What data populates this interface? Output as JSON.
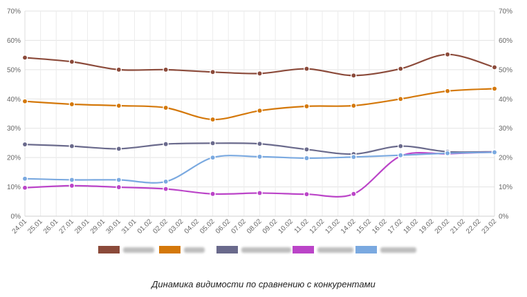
{
  "caption": "Динамика видимости по сравнению с конкурентами",
  "chart_data": {
    "type": "line",
    "title": "",
    "xlabel": "",
    "ylabel": "",
    "ylim": [
      0,
      70
    ],
    "y_ticks": [
      "0%",
      "10%",
      "20%",
      "30%",
      "40%",
      "50%",
      "60%",
      "70%"
    ],
    "y_axis": "both sides",
    "grid": true,
    "legend_position": "bottom",
    "legend_labels_obscured": true,
    "categories": [
      "24.01",
      "25.01",
      "26.01",
      "27.01",
      "28.01",
      "29.01",
      "30.01",
      "31.01",
      "01.02",
      "02.02",
      "03.02",
      "04.02",
      "05.02",
      "06.02",
      "07.02",
      "08.02",
      "09.02",
      "10.02",
      "11.02",
      "12.02",
      "13.02",
      "14.02",
      "15.02",
      "16.02",
      "17.02",
      "18.02",
      "19.02",
      "20.02",
      "21.02",
      "22.02",
      "23.02"
    ],
    "series": [
      {
        "color": "#8b4a3a",
        "points": [
          [
            0,
            54.1
          ],
          [
            3,
            52.7
          ],
          [
            6,
            50.0
          ],
          [
            9,
            50.0
          ],
          [
            12,
            49.2
          ],
          [
            15,
            48.7
          ],
          [
            18,
            50.3
          ],
          [
            21,
            48.0
          ],
          [
            24,
            50.3
          ],
          [
            27,
            55.2
          ],
          [
            30,
            50.8
          ]
        ]
      },
      {
        "color": "#d4780a",
        "points": [
          [
            0,
            39.2
          ],
          [
            3,
            38.2
          ],
          [
            6,
            37.7
          ],
          [
            9,
            37.0
          ],
          [
            12,
            33.0
          ],
          [
            15,
            36.0
          ],
          [
            18,
            37.5
          ],
          [
            21,
            37.7
          ],
          [
            24,
            40.0
          ],
          [
            27,
            42.7
          ],
          [
            30,
            43.5
          ]
        ]
      },
      {
        "color": "#6a6a8c",
        "points": [
          [
            0,
            24.5
          ],
          [
            3,
            23.9
          ],
          [
            6,
            23.0
          ],
          [
            9,
            24.6
          ],
          [
            12,
            24.9
          ],
          [
            15,
            24.7
          ],
          [
            18,
            22.8
          ],
          [
            21,
            21.2
          ],
          [
            24,
            23.9
          ],
          [
            27,
            22.0
          ],
          [
            30,
            22.0
          ]
        ]
      },
      {
        "color": "#bb44c8",
        "points": [
          [
            0,
            9.7
          ],
          [
            3,
            10.4
          ],
          [
            6,
            9.9
          ],
          [
            9,
            9.3
          ],
          [
            12,
            7.6
          ],
          [
            15,
            7.9
          ],
          [
            18,
            7.5
          ],
          [
            21,
            7.6
          ],
          [
            24,
            20.5
          ],
          [
            27,
            21.3
          ],
          [
            30,
            21.9
          ]
        ]
      },
      {
        "color": "#7aa9e0",
        "points": [
          [
            0,
            12.8
          ],
          [
            3,
            12.4
          ],
          [
            6,
            12.4
          ],
          [
            9,
            11.8
          ],
          [
            12,
            20.0
          ],
          [
            15,
            20.3
          ],
          [
            18,
            19.8
          ],
          [
            21,
            20.2
          ],
          [
            24,
            20.8
          ],
          [
            27,
            21.5
          ],
          [
            30,
            21.8
          ]
        ]
      }
    ]
  }
}
